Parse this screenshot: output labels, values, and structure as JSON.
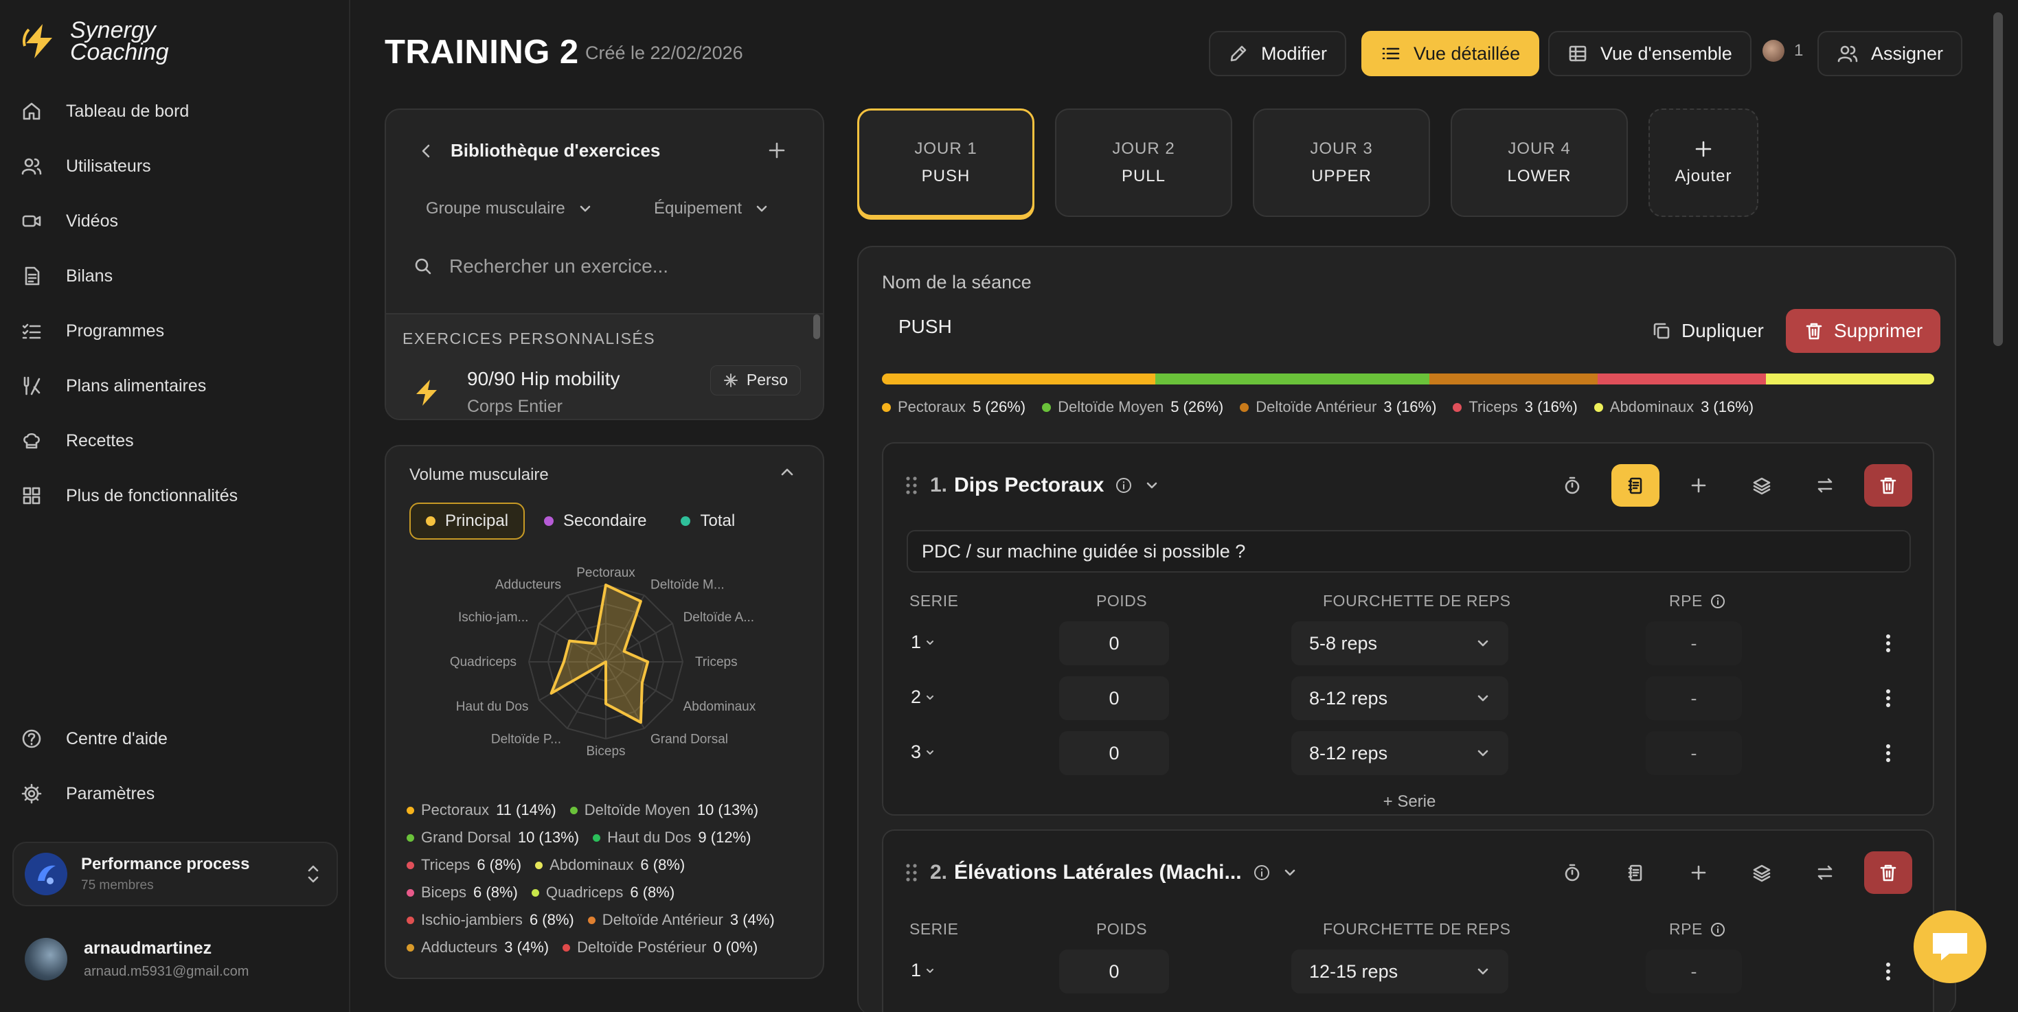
{
  "brand": {
    "line1": "Synergy",
    "line2": "Coaching"
  },
  "nav": [
    {
      "label": "Tableau de bord",
      "icon": "home-icon"
    },
    {
      "label": "Utilisateurs",
      "icon": "users-icon"
    },
    {
      "label": "Vidéos",
      "icon": "video-icon"
    },
    {
      "label": "Bilans",
      "icon": "file-icon"
    },
    {
      "label": "Programmes",
      "icon": "list-check-icon"
    },
    {
      "label": "Plans alimentaires",
      "icon": "utensils-icon"
    },
    {
      "label": "Recettes",
      "icon": "chef-hat-icon"
    },
    {
      "label": "Plus de fonctionnalités",
      "icon": "grid-icon"
    }
  ],
  "nav_bottom": [
    {
      "label": "Centre d'aide",
      "icon": "help-icon"
    },
    {
      "label": "Paramètres",
      "icon": "gear-icon"
    }
  ],
  "team": {
    "name": "Performance process",
    "members": "75 membres"
  },
  "user": {
    "name": "arnaudmartinez",
    "email": "arnaud.m5931@gmail.com"
  },
  "header": {
    "title": "TRAINING 2",
    "created": "Créé le 22/02/2026",
    "edit_label": "Modifier",
    "detailed_label": "Vue détaillée",
    "overview_label": "Vue d'ensemble",
    "assignee_count": "1",
    "assign_label": "Assigner"
  },
  "library": {
    "title": "Bibliothèque d'exercices",
    "filter_group": "Groupe musculaire",
    "filter_equipment": "Équipement",
    "search_placeholder": "Rechercher un exercice...",
    "section": "EXERCICES PERSONNALISÉS",
    "item": {
      "name": "90/90 Hip mobility",
      "sub": "Corps Entier",
      "badge": "Perso"
    }
  },
  "volume": {
    "title": "Volume musculaire",
    "tabs": [
      {
        "label": "Principal",
        "color": "#f6c23f"
      },
      {
        "label": "Secondaire",
        "color": "#b65bd6"
      },
      {
        "label": "Total",
        "color": "#2fbf9a"
      }
    ],
    "radar_labels": [
      "Pectoraux",
      "Deltoïde M...",
      "Deltoïde A...",
      "Triceps",
      "Abdominaux",
      "Grand Dorsal",
      "Biceps",
      "Deltoïde P...",
      "Haut du Dos",
      "Quadriceps",
      "Ischio-jam...",
      "Adducteurs"
    ],
    "legend": [
      {
        "name": "Pectoraux",
        "value": "11 (14%)",
        "color": "#f6b21b"
      },
      {
        "name": "Deltoïde Moyen",
        "value": "10 (13%)",
        "color": "#6ac23a"
      },
      {
        "name": "Grand Dorsal",
        "value": "10 (13%)",
        "color": "#6ac23a"
      },
      {
        "name": "Haut du Dos",
        "value": "9 (12%)",
        "color": "#2bbf5a"
      },
      {
        "name": "Triceps",
        "value": "6 (8%)",
        "color": "#e0505a"
      },
      {
        "name": "Abdominaux",
        "value": "6 (8%)",
        "color": "#e6e65a"
      },
      {
        "name": "Biceps",
        "value": "6 (8%)",
        "color": "#e85a8a"
      },
      {
        "name": "Quadriceps",
        "value": "6 (8%)",
        "color": "#c8e64a"
      },
      {
        "name": "Ischio-jambiers",
        "value": "6 (8%)",
        "color": "#e05050"
      },
      {
        "name": "Deltoïde Antérieur",
        "value": "3 (4%)",
        "color": "#e08030"
      },
      {
        "name": "Adducteurs",
        "value": "3 (4%)",
        "color": "#d99a2a"
      },
      {
        "name": "Deltoïde Postérieur",
        "value": "0 (0%)",
        "color": "#e04a4a"
      }
    ]
  },
  "days": [
    {
      "day": "JOUR 1",
      "name": "PUSH"
    },
    {
      "day": "JOUR 2",
      "name": "PULL"
    },
    {
      "day": "JOUR 3",
      "name": "UPPER"
    },
    {
      "day": "JOUR 4",
      "name": "LOWER"
    }
  ],
  "add_day_label": "Ajouter",
  "session": {
    "name_label": "Nom de la séance",
    "name": "PUSH",
    "duplicate_label": "Dupliquer",
    "delete_label": "Supprimer",
    "muscles": [
      {
        "name": "Pectoraux",
        "value": "5 (26%)",
        "color": "#f6b21b",
        "share": 26
      },
      {
        "name": "Deltoïde Moyen",
        "value": "5 (26%)",
        "color": "#6ac23a",
        "share": 26
      },
      {
        "name": "Deltoïde Antérieur",
        "value": "3 (16%)",
        "color": "#c87a1a",
        "share": 16
      },
      {
        "name": "Triceps",
        "value": "3 (16%)",
        "color": "#e0505a",
        "share": 16
      },
      {
        "name": "Abdominaux",
        "value": "3 (16%)",
        "color": "#eef05a",
        "share": 16
      }
    ]
  },
  "columns": {
    "serie": "SERIE",
    "poids": "POIDS",
    "reps": "FOURCHETTE DE REPS",
    "rpe": "RPE"
  },
  "exercises": [
    {
      "number": "1.",
      "name": "Dips Pectoraux",
      "note": "PDC / sur machine guidée si possible ?",
      "sets": [
        {
          "serie": "1",
          "poids": "0",
          "reps": "5-8 reps",
          "rpe": "-"
        },
        {
          "serie": "2",
          "poids": "0",
          "reps": "8-12 reps",
          "rpe": "-"
        },
        {
          "serie": "3",
          "poids": "0",
          "reps": "8-12 reps",
          "rpe": "-"
        }
      ],
      "add_set": "+ Serie"
    },
    {
      "number": "2.",
      "name": "Élévations Latérales (Machi...",
      "sets": [
        {
          "serie": "1",
          "poids": "0",
          "reps": "12-15 reps",
          "rpe": "-"
        }
      ]
    }
  ]
}
